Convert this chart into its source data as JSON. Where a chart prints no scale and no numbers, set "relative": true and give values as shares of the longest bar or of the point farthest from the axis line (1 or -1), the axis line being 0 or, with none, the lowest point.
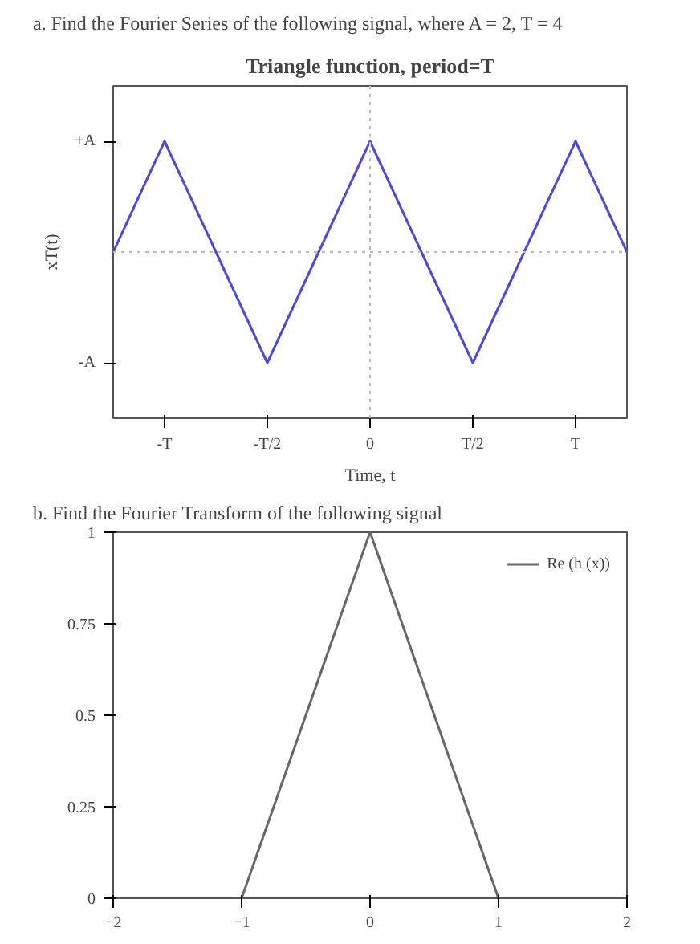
{
  "chart_data": [
    {
      "type": "line",
      "annotations": [
        "a.   Find the Fourier Series of the following signal, where A = 2, T = 4",
        "+A",
        "-A"
      ],
      "title": "Triangle function, period=T",
      "xlabel": "Time, t",
      "ylabel": "xT(t)",
      "categories": [
        null,
        "-T",
        null,
        "-T/2",
        null,
        "0",
        null,
        "T/2",
        null,
        "T",
        null
      ],
      "relative": true,
      "series": [
        {
          "color": "#4b4bd6",
          "values": [
            0,
            1,
            0,
            -1,
            0,
            1,
            0,
            -1,
            0,
            1,
            0
          ]
        }
      ],
      "ref_lines": [
        {
          "axis": "x",
          "value": "0",
          "color": "#bbbbbb",
          "line_style": "dotted"
        },
        {
          "axis": "y",
          "value": 0,
          "color": "#bbbbbb",
          "line_style": "dotted"
        }
      ],
      "grid": false,
      "legend": false
    },
    {
      "type": "line",
      "annotations": [
        "b.   Find the Fourier Transform of the following signal"
      ],
      "x": [
        -1,
        0,
        1
      ],
      "series": [
        {
          "name": "Re (h (x))",
          "color": "#666666",
          "values": [
            0,
            1,
            0
          ]
        }
      ],
      "xlim": [
        -2,
        2
      ],
      "xticks": [
        {
          "value": -2,
          "label": "−2"
        },
        {
          "value": -1,
          "label": "−1"
        },
        0,
        1,
        2
      ],
      "ylim": [
        0,
        1
      ],
      "yticks": [
        0,
        0.25,
        0.5,
        0.75,
        1
      ],
      "grid": false,
      "legend": "top right"
    }
  ]
}
